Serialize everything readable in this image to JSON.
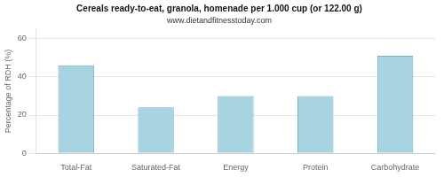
{
  "chart_data": {
    "type": "bar",
    "title": "Cereals ready-to-eat, granola, homenade per 1.000 cup (or 122.00 g)",
    "subtitle": "www.dietandfitnesstoday.com",
    "categories": [
      "Total-Fat",
      "Saturated-Fat",
      "Energy",
      "Protein",
      "Carbohydrate"
    ],
    "values": [
      46,
      24,
      30,
      30,
      51
    ],
    "color": "#a8d3e0",
    "ylabel": "Percentage of RDH (%)",
    "ylim": [
      0,
      65
    ],
    "yticks": [
      0,
      20,
      40,
      60
    ],
    "grid": true
  }
}
